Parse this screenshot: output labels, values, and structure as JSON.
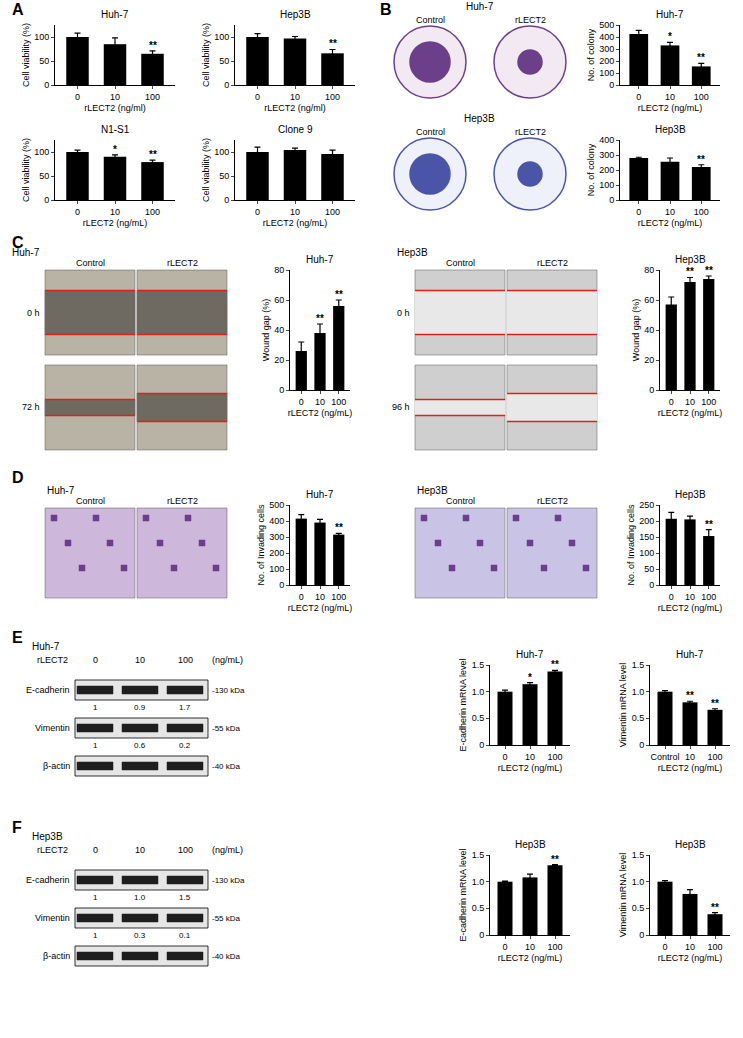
{
  "chart_data": [
    {
      "type": "bar",
      "title": "Huh-7",
      "x_label": "rLECT2 (ng/ml)",
      "y_label": "Cell viability (%)",
      "categories": [
        "0",
        "10",
        "100"
      ],
      "values": [
        100,
        85,
        65
      ],
      "errors": [
        8,
        13,
        6
      ],
      "annotations": [
        null,
        null,
        "**"
      ],
      "color": "#000000",
      "ylim": [
        0,
        125
      ],
      "yticks": [
        0,
        50,
        100
      ]
    },
    {
      "type": "bar",
      "title": "Hep3B",
      "x_label": "rLECT2 (ng/ml)",
      "y_label": "Cell viability (%)",
      "categories": [
        "0",
        "10",
        "100"
      ],
      "values": [
        100,
        97,
        66
      ],
      "errors": [
        7,
        4,
        8
      ],
      "annotations": [
        null,
        null,
        "**"
      ],
      "color": "#000000",
      "ylim": [
        0,
        125
      ],
      "yticks": [
        0,
        50,
        100
      ]
    },
    {
      "type": "bar",
      "title": "N1-S1",
      "x_label": "rLECT2 (ng/mL)",
      "y_label": "Cell viability (%)",
      "categories": [
        "0",
        "10",
        "100"
      ],
      "values": [
        100,
        90,
        79
      ],
      "errors": [
        4,
        4,
        4
      ],
      "annotations": [
        null,
        "*",
        "**"
      ],
      "color": "#000000",
      "ylim": [
        0,
        125
      ],
      "yticks": [
        0,
        50,
        100
      ]
    },
    {
      "type": "bar",
      "title": "Clone 9",
      "x_label": "rLECT2 (ng/mL)",
      "y_label": "Cell viability (%)",
      "categories": [
        "0",
        "10",
        "100"
      ],
      "values": [
        100,
        104,
        96
      ],
      "errors": [
        10,
        4,
        8
      ],
      "annotations": [
        null,
        null,
        null
      ],
      "color": "#000000",
      "ylim": [
        0,
        125
      ],
      "yticks": [
        0,
        50,
        100
      ]
    },
    {
      "type": "bar",
      "title": "Huh-7",
      "x_label": "rLECT2 (ng/mL)",
      "y_label": "No. of colony",
      "categories": [
        "0",
        "10",
        "100"
      ],
      "values": [
        425,
        330,
        155
      ],
      "errors": [
        30,
        25,
        25
      ],
      "annotations": [
        null,
        "*",
        "**"
      ],
      "color": "#000000",
      "ylim": [
        0,
        500
      ],
      "yticks": [
        0,
        100,
        200,
        300,
        400,
        500
      ]
    },
    {
      "type": "bar",
      "title": "Hep3B",
      "x_label": "rLECT2 (ng/mL)",
      "y_label": "No. of colony",
      "categories": [
        "0",
        "10",
        "100"
      ],
      "values": [
        280,
        255,
        220
      ],
      "errors": [
        5,
        25,
        15
      ],
      "annotations": [
        null,
        null,
        "**"
      ],
      "color": "#000000",
      "ylim": [
        0,
        400
      ],
      "yticks": [
        0,
        100,
        200,
        300,
        400
      ]
    },
    {
      "type": "bar",
      "title": "Huh-7",
      "x_label": "rLECT2 (ng/mL)",
      "y_label": "Wound gap (%)",
      "categories": [
        "0",
        "10",
        "100"
      ],
      "values": [
        26,
        38,
        56
      ],
      "errors": [
        6,
        6,
        4
      ],
      "annotations": [
        null,
        "**",
        "**"
      ],
      "color": "#000000",
      "ylim": [
        0,
        80
      ],
      "yticks": [
        0,
        20,
        40,
        60,
        80
      ]
    },
    {
      "type": "bar",
      "title": "Hep3B",
      "x_label": "rLECT2 (ng/mL)",
      "y_label": "Wound gap (%)",
      "categories": [
        "0",
        "10",
        "100"
      ],
      "values": [
        57,
        72,
        74
      ],
      "errors": [
        5,
        3,
        2
      ],
      "annotations": [
        null,
        "**",
        "**"
      ],
      "color": "#000000",
      "ylim": [
        0,
        80
      ],
      "yticks": [
        0,
        20,
        40,
        60,
        80
      ]
    },
    {
      "type": "bar",
      "title": "Huh-7",
      "x_label": "rLECT2 (ng/mL)",
      "y_label": "No. of Invading cells",
      "categories": [
        "0",
        "10",
        "100"
      ],
      "values": [
        415,
        390,
        315
      ],
      "errors": [
        25,
        20,
        8
      ],
      "annotations": [
        null,
        null,
        "**"
      ],
      "color": "#000000",
      "ylim": [
        0,
        500
      ],
      "yticks": [
        0,
        100,
        200,
        300,
        400,
        500
      ]
    },
    {
      "type": "bar",
      "title": "Hep3B",
      "x_label": "rLECT2 (ng/mL)",
      "y_label": "No. of Invading cells",
      "categories": [
        "0",
        "10",
        "100"
      ],
      "values": [
        207,
        205,
        153
      ],
      "errors": [
        20,
        10,
        20
      ],
      "annotations": [
        null,
        null,
        "**"
      ],
      "color": "#000000",
      "ylim": [
        0,
        250
      ],
      "yticks": [
        0,
        50,
        100,
        150,
        200,
        250
      ]
    },
    {
      "type": "bar",
      "title": "Huh-7",
      "x_label": "rLECT2 (ng/mL)",
      "y_label": "E-cadherin mRNA level",
      "categories": [
        "0",
        "10",
        "100"
      ],
      "values": [
        1.0,
        1.14,
        1.38
      ],
      "errors": [
        0.03,
        0.03,
        0.02
      ],
      "annotations": [
        null,
        "*",
        "**"
      ],
      "color": "#000000",
      "ylim": [
        0,
        1.5
      ],
      "yticks": [
        0,
        0.5,
        {
          "value": 1,
          "label": "1.0"
        },
        1.5
      ]
    },
    {
      "type": "bar",
      "title": "Huh-7",
      "x_label": "rLECT2 (ng/mL)",
      "y_label": "Vimentin mRNA level",
      "categories": [
        "Control",
        "10",
        "100"
      ],
      "values": [
        1.0,
        0.8,
        0.66
      ],
      "errors": [
        0.02,
        0.02,
        0.02
      ],
      "annotations": [
        null,
        "**",
        "**"
      ],
      "color": "#000000",
      "ylim": [
        0,
        1.5
      ],
      "yticks": [
        0,
        0.5,
        {
          "value": 1,
          "label": "1.0"
        },
        1.5
      ]
    },
    {
      "type": "bar",
      "title": "Hep3B",
      "x_label": "rLECT2 (ng/mL)",
      "y_label": "E-cadherin mRNA level",
      "categories": [
        "0",
        "10",
        "100"
      ],
      "values": [
        1.0,
        1.08,
        1.31
      ],
      "errors": [
        0.01,
        0.06,
        0.01
      ],
      "annotations": [
        null,
        null,
        "**"
      ],
      "color": "#000000",
      "ylim": [
        0,
        1.5
      ],
      "yticks": [
        0,
        0.5,
        {
          "value": 1,
          "label": "1.0"
        },
        1.5
      ]
    },
    {
      "type": "bar",
      "title": "Hep3B",
      "x_label": "rLECT2 (ng/mL)",
      "y_label": "Vimentin mRNA level",
      "categories": [
        "0",
        "10",
        "100"
      ],
      "values": [
        1.0,
        0.77,
        0.39
      ],
      "errors": [
        0.02,
        0.08,
        0.03
      ],
      "annotations": [
        null,
        null,
        "**"
      ],
      "color": "#000000",
      "ylim": [
        0,
        1.5
      ],
      "yticks": [
        0,
        0.5,
        {
          "value": 1,
          "label": "1.0"
        },
        1.5
      ]
    }
  ],
  "figure": {
    "panel_labels": [
      "A",
      "B",
      "C",
      "D",
      "E",
      "F"
    ],
    "images": [
      {
        "title": "Huh-7",
        "conditions": [
          "Control",
          "rLECT2"
        ]
      },
      {
        "title": "Hep3B",
        "conditions": [
          "Control",
          "rLECT2"
        ]
      },
      {
        "title": "Huh-7",
        "conditions": [
          "Control",
          "rLECT2"
        ],
        "time_points": [
          "0 h",
          "72 h"
        ]
      },
      {
        "title": "Hep3B",
        "conditions": [
          "Control",
          "rLECT2"
        ],
        "time_points": [
          "0 h",
          "96 h"
        ]
      },
      {
        "title": "Huh-7",
        "conditions": [
          "Control",
          "rLECT2"
        ]
      },
      {
        "title": "Hep3B",
        "conditions": [
          "Control",
          "rLECT2"
        ]
      }
    ],
    "blots": [
      {
        "title": "Huh-7",
        "treatment": "rLECT2",
        "doses": [
          "0",
          "10",
          "100"
        ],
        "unit": "(ng/mL)",
        "rows": [
          {
            "name": "E-cadherin",
            "size": "-130 kDa",
            "quantification": [
              "1",
              "0.9",
              "1.7"
            ]
          },
          {
            "name": "Vimentin",
            "size": "-55 kDa",
            "quantification": [
              "1",
              "0.6",
              "0.2"
            ]
          },
          {
            "name": "β-actin",
            "size": "-40 kDa"
          }
        ]
      },
      {
        "title": "Hep3B",
        "treatment": "rLECT2",
        "doses": [
          "0",
          "10",
          "100"
        ],
        "unit": "(ng/mL)",
        "rows": [
          {
            "name": "E-cadherin",
            "size": "-130 kDa",
            "quantification": [
              "1",
              "1.0",
              "1.5"
            ]
          },
          {
            "name": "Vimentin",
            "size": "-55 kDa",
            "quantification": [
              "1",
              "0.3",
              "0.1"
            ]
          },
          {
            "name": "β-actin",
            "size": "-40 kDa"
          }
        ]
      }
    ]
  }
}
